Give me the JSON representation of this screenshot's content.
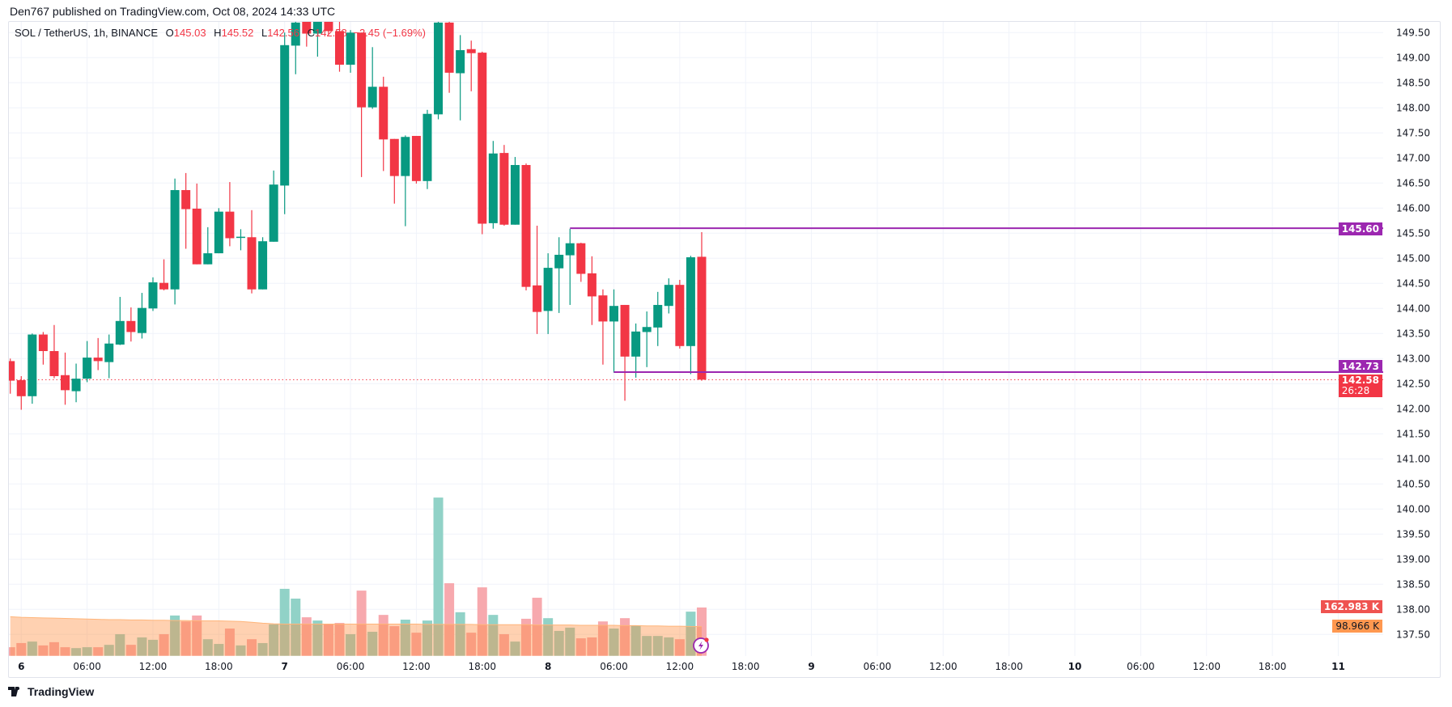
{
  "header": {
    "published": "Den767 published on TradingView.com, Oct 08, 2024 14:33 UTC"
  },
  "legend": {
    "symbol": "SOL / TetherUS, 1h, BINANCE",
    "o_label": "O",
    "o": "145.03",
    "h_label": "H",
    "h": "145.52",
    "l_label": "L",
    "l": "142.56",
    "c_label": "C",
    "c": "142.58",
    "change": "−2.45 (−1.69%)"
  },
  "tags": {
    "resistance": "145.60",
    "support": "142.73",
    "last_price": "142.58",
    "countdown": "26:28",
    "volume": "162.983 K",
    "volume_ma": "98.966 K"
  },
  "footer": {
    "brand": "TradingView"
  },
  "colors": {
    "up": "#089981",
    "down": "#F23645",
    "line": "#9C27B0",
    "vol_up": "#91d2c7",
    "vol_down": "#f7a9ae",
    "ma": "#ffb57a"
  },
  "chart_data": {
    "type": "candlestick",
    "title": "SOL / TetherUS, 1h, BINANCE",
    "ylim": [
      137.25,
      149.9
    ],
    "yticks": [
      "149.50",
      "149.00",
      "148.50",
      "148.00",
      "147.50",
      "147.00",
      "146.50",
      "146.00",
      "145.50",
      "145.00",
      "144.50",
      "144.00",
      "143.50",
      "143.00",
      "142.50",
      "142.00",
      "141.50",
      "141.00",
      "140.50",
      "140.00",
      "139.50",
      "139.00",
      "138.50",
      "138.00",
      "137.50"
    ],
    "xticks": [
      {
        "label": "6",
        "bar": 1,
        "day": true
      },
      {
        "label": "06:00",
        "bar": 7
      },
      {
        "label": "12:00",
        "bar": 13
      },
      {
        "label": "18:00",
        "bar": 19
      },
      {
        "label": "7",
        "bar": 25,
        "day": true
      },
      {
        "label": "06:00",
        "bar": 31
      },
      {
        "label": "12:00",
        "bar": 37
      },
      {
        "label": "18:00",
        "bar": 43
      },
      {
        "label": "8",
        "bar": 49,
        "day": true
      },
      {
        "label": "06:00",
        "bar": 55
      },
      {
        "label": "12:00",
        "bar": 61
      },
      {
        "label": "18:00",
        "bar": 67
      },
      {
        "label": "9",
        "bar": 73,
        "day": true
      },
      {
        "label": "06:00",
        "bar": 79
      },
      {
        "label": "12:00",
        "bar": 85
      },
      {
        "label": "18:00",
        "bar": 91
      },
      {
        "label": "10",
        "bar": 97,
        "day": true
      },
      {
        "label": "06:00",
        "bar": 103
      },
      {
        "label": "12:00",
        "bar": 109
      },
      {
        "label": "18:00",
        "bar": 115
      },
      {
        "label": "11",
        "bar": 121,
        "day": true
      }
    ],
    "ohlc": [
      [
        142.95,
        143.0,
        142.3,
        142.56
      ],
      [
        142.57,
        142.65,
        141.98,
        142.25
      ],
      [
        142.25,
        143.5,
        142.1,
        143.48
      ],
      [
        143.48,
        143.53,
        142.88,
        143.15
      ],
      [
        143.15,
        143.67,
        142.61,
        142.65
      ],
      [
        142.67,
        143.12,
        142.08,
        142.37
      ],
      [
        142.35,
        142.9,
        142.13,
        142.6
      ],
      [
        142.6,
        143.35,
        142.53,
        143.02
      ],
      [
        143.02,
        143.41,
        142.77,
        142.95
      ],
      [
        142.93,
        143.48,
        142.61,
        143.3
      ],
      [
        143.28,
        144.23,
        143.27,
        143.75
      ],
      [
        143.75,
        144.02,
        143.34,
        143.53
      ],
      [
        143.51,
        144.31,
        143.4,
        144.01
      ],
      [
        144.0,
        144.62,
        143.95,
        144.52
      ],
      [
        144.51,
        144.98,
        144.36,
        144.38
      ],
      [
        144.38,
        146.59,
        144.08,
        146.36
      ],
      [
        146.36,
        146.7,
        145.19,
        145.98
      ],
      [
        145.99,
        146.49,
        144.88,
        144.88
      ],
      [
        144.88,
        145.62,
        144.88,
        145.1
      ],
      [
        145.1,
        146.0,
        145.1,
        145.93
      ],
      [
        145.93,
        146.52,
        145.24,
        145.4
      ],
      [
        145.41,
        145.58,
        145.16,
        145.43
      ],
      [
        145.42,
        145.96,
        144.3,
        144.38
      ],
      [
        144.38,
        145.42,
        144.38,
        145.34
      ],
      [
        145.33,
        146.75,
        145.33,
        146.47
      ],
      [
        146.45,
        149.5,
        145.88,
        149.25
      ],
      [
        149.24,
        149.9,
        148.67,
        149.7
      ],
      [
        149.75,
        149.9,
        149.22,
        149.48
      ],
      [
        149.48,
        149.9,
        149.02,
        149.75
      ],
      [
        149.75,
        149.9,
        149.45,
        149.53
      ],
      [
        149.53,
        149.75,
        148.72,
        148.86
      ],
      [
        148.86,
        149.55,
        148.7,
        149.5
      ],
      [
        149.5,
        149.5,
        146.62,
        148.01
      ],
      [
        148.01,
        149.21,
        147.98,
        148.42
      ],
      [
        148.42,
        148.62,
        146.74,
        147.37
      ],
      [
        147.38,
        147.38,
        146.09,
        146.64
      ],
      [
        146.64,
        147.45,
        145.64,
        147.42
      ],
      [
        147.44,
        147.44,
        146.49,
        146.54
      ],
      [
        146.54,
        147.96,
        146.38,
        147.88
      ],
      [
        147.87,
        149.9,
        147.77,
        149.7
      ],
      [
        149.7,
        149.9,
        148.3,
        148.7
      ],
      [
        148.69,
        149.45,
        147.75,
        149.15
      ],
      [
        149.17,
        149.34,
        148.33,
        149.09
      ],
      [
        149.1,
        149.12,
        145.48,
        145.69
      ],
      [
        145.7,
        147.34,
        145.59,
        147.09
      ],
      [
        147.1,
        147.26,
        145.65,
        145.67
      ],
      [
        145.67,
        147.02,
        145.67,
        146.86
      ],
      [
        146.86,
        146.89,
        144.36,
        144.43
      ],
      [
        144.46,
        145.65,
        143.49,
        143.93
      ],
      [
        143.95,
        145.1,
        143.49,
        144.81
      ],
      [
        144.8,
        145.42,
        143.91,
        145.07
      ],
      [
        145.06,
        145.59,
        144.07,
        145.3
      ],
      [
        145.3,
        145.31,
        144.53,
        144.69
      ],
      [
        144.7,
        145.04,
        143.67,
        144.24
      ],
      [
        144.26,
        144.38,
        142.88,
        143.74
      ],
      [
        143.74,
        144.38,
        142.72,
        144.05
      ],
      [
        144.07,
        144.07,
        142.16,
        143.04
      ],
      [
        143.04,
        143.7,
        142.62,
        143.54
      ],
      [
        143.53,
        143.94,
        142.83,
        143.63
      ],
      [
        143.62,
        144.33,
        143.25,
        144.07
      ],
      [
        144.05,
        144.6,
        143.9,
        144.47
      ],
      [
        144.47,
        144.57,
        143.2,
        143.25
      ],
      [
        143.25,
        145.05,
        142.69,
        145.02
      ],
      [
        145.03,
        145.52,
        142.56,
        142.58
      ]
    ],
    "volume_k": [
      29,
      43,
      48,
      35,
      46,
      29,
      26,
      29,
      29,
      37,
      73,
      37,
      62,
      54,
      73,
      136,
      116,
      136,
      56,
      40,
      92,
      35,
      56,
      43,
      106,
      226,
      193,
      130,
      119,
      106,
      111,
      73,
      220,
      81,
      138,
      100,
      122,
      78,
      119,
      534,
      245,
      147,
      78,
      231,
      138,
      73,
      48,
      125,
      196,
      127,
      84,
      95,
      59,
      62,
      116,
      92,
      127,
      103,
      67,
      67,
      62,
      56,
      149,
      162.983
    ],
    "volume_ma_k": [
      132,
      130,
      129,
      128,
      127,
      126,
      125,
      124,
      123,
      122,
      122,
      121,
      121,
      120,
      120,
      119,
      119,
      118,
      118,
      118,
      117,
      116,
      113,
      110,
      108,
      107,
      107,
      107,
      107,
      107,
      107,
      107,
      107,
      107,
      107,
      107,
      107,
      107,
      106,
      106,
      106,
      106,
      106,
      105,
      105,
      105,
      105,
      105,
      104,
      104,
      104,
      104,
      103,
      103,
      103,
      103,
      102,
      102,
      101,
      101,
      100,
      100,
      99,
      98.966
    ],
    "horizontal_lines": [
      {
        "price": 145.6,
        "from_bar": 51,
        "color": "#9C27B0"
      },
      {
        "price": 142.73,
        "from_bar": 55,
        "color": "#9C27B0"
      }
    ],
    "last_price": 142.58
  }
}
